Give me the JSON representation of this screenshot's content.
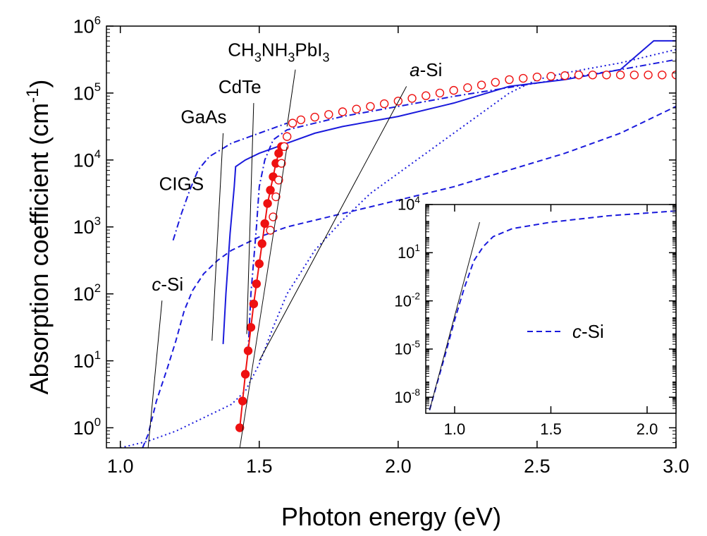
{
  "chart_data": [
    {
      "id": "main",
      "type": "line",
      "xlabel": "Photon energy (eV)",
      "ylabel": "Absorption coefficient (cm",
      "ylabel_sup": "-1",
      "ylabel_close": ")",
      "xlim": [
        0.95,
        3.0
      ],
      "ylim_log10": [
        -0.3,
        6
      ],
      "yscale": "log",
      "x_ticks": [
        {
          "v": 1.0,
          "label": "1.0"
        },
        {
          "v": 1.5,
          "label": "1.5"
        },
        {
          "v": 2.0,
          "label": "2.0"
        },
        {
          "v": 2.5,
          "label": "2.5"
        },
        {
          "v": 3.0,
          "label": "3.0"
        }
      ],
      "y_ticks": [
        {
          "exp": 0,
          "base": "10",
          "sup": "0"
        },
        {
          "exp": 1,
          "base": "10",
          "sup": "1"
        },
        {
          "exp": 2,
          "base": "10",
          "sup": "2"
        },
        {
          "exp": 3,
          "base": "10",
          "sup": "3"
        },
        {
          "exp": 4,
          "base": "10",
          "sup": "4"
        },
        {
          "exp": 5,
          "base": "10",
          "sup": "5"
        },
        {
          "exp": 6,
          "base": "10",
          "sup": "6"
        }
      ],
      "grid": false,
      "series": [
        {
          "name": "c-Si",
          "color": "#1a1adc",
          "style": "dashed",
          "points": [
            [
              1.08,
              -0.3
            ],
            [
              1.1,
              -0.1
            ],
            [
              1.13,
              0.4
            ],
            [
              1.17,
              0.9
            ],
            [
              1.2,
              1.3
            ],
            [
              1.23,
              1.75
            ],
            [
              1.26,
              2.05
            ],
            [
              1.3,
              2.3
            ],
            [
              1.35,
              2.5
            ],
            [
              1.4,
              2.65
            ],
            [
              1.5,
              2.85
            ],
            [
              1.6,
              3.0
            ],
            [
              1.8,
              3.2
            ],
            [
              2.0,
              3.4
            ],
            [
              2.2,
              3.6
            ],
            [
              2.4,
              3.85
            ],
            [
              2.6,
              4.1
            ],
            [
              2.8,
              4.4
            ],
            [
              3.0,
              4.8
            ]
          ]
        },
        {
          "name": "a-Si",
          "color": "#1a1adc",
          "style": "dotted",
          "points": [
            [
              1.0,
              -0.3
            ],
            [
              1.1,
              -0.2
            ],
            [
              1.2,
              -0.05
            ],
            [
              1.3,
              0.15
            ],
            [
              1.4,
              0.35
            ],
            [
              1.45,
              0.55
            ],
            [
              1.5,
              0.95
            ],
            [
              1.55,
              1.5
            ],
            [
              1.6,
              2.0
            ],
            [
              1.7,
              2.65
            ],
            [
              1.8,
              3.1
            ],
            [
              1.9,
              3.5
            ],
            [
              2.0,
              3.8
            ],
            [
              2.1,
              4.1
            ],
            [
              2.2,
              4.4
            ],
            [
              2.3,
              4.7
            ],
            [
              2.4,
              5.0
            ],
            [
              2.5,
              5.2
            ],
            [
              2.6,
              5.3
            ],
            [
              2.8,
              5.45
            ],
            [
              3.0,
              5.65
            ]
          ]
        },
        {
          "name": "GaAs",
          "color": "#1a1adc",
          "style": "solid",
          "points": [
            [
              1.37,
              1.25
            ],
            [
              1.38,
              2.0
            ],
            [
              1.395,
              2.9
            ],
            [
              1.41,
              3.6
            ],
            [
              1.415,
              3.9
            ],
            [
              1.45,
              4.0
            ],
            [
              1.5,
              4.1
            ],
            [
              1.6,
              4.25
            ],
            [
              1.7,
              4.4
            ],
            [
              1.8,
              4.5
            ],
            [
              2.0,
              4.65
            ],
            [
              2.2,
              4.85
            ],
            [
              2.4,
              5.1
            ],
            [
              2.6,
              5.2
            ],
            [
              2.8,
              5.35
            ],
            [
              2.92,
              5.78
            ],
            [
              3.0,
              5.78
            ]
          ]
        },
        {
          "name": "CdTe",
          "color": "#1a1adc",
          "style": "dashdot",
          "points": [
            [
              1.46,
              1.15
            ],
            [
              1.47,
              2.0
            ],
            [
              1.49,
              3.0
            ],
            [
              1.5,
              3.6
            ],
            [
              1.52,
              4.0
            ],
            [
              1.55,
              4.3
            ],
            [
              1.6,
              4.45
            ],
            [
              1.8,
              4.65
            ],
            [
              2.0,
              4.8
            ],
            [
              2.2,
              4.95
            ],
            [
              2.5,
              5.15
            ],
            [
              2.8,
              5.35
            ],
            [
              3.0,
              5.5
            ]
          ]
        },
        {
          "name": "CIGS",
          "color": "#1a1adc",
          "style": "dashdot",
          "points": [
            [
              1.19,
              2.8
            ],
            [
              1.22,
              3.2
            ],
            [
              1.25,
              3.55
            ],
            [
              1.28,
              3.85
            ],
            [
              1.32,
              4.05
            ],
            [
              1.4,
              4.25
            ],
            [
              1.5,
              4.4
            ],
            [
              1.6,
              4.55
            ]
          ]
        },
        {
          "name": "CH3NH3PbI3 (filled)",
          "color": "#ee1111",
          "style": "markers-filled",
          "points": [
            [
              1.43,
              0.0
            ],
            [
              1.44,
              0.4
            ],
            [
              1.45,
              0.8
            ],
            [
              1.46,
              1.15
            ],
            [
              1.47,
              1.5
            ],
            [
              1.48,
              1.85
            ],
            [
              1.49,
              2.15
            ],
            [
              1.5,
              2.45
            ],
            [
              1.51,
              2.75
            ],
            [
              1.52,
              3.05
            ],
            [
              1.53,
              3.35
            ],
            [
              1.54,
              3.55
            ],
            [
              1.55,
              3.75
            ],
            [
              1.56,
              3.95
            ],
            [
              1.57,
              4.1
            ],
            [
              1.58,
              4.2
            ]
          ]
        },
        {
          "name": "CH3NH3PbI3 (open)",
          "color": "#ee1111",
          "style": "markers-open",
          "points": [
            [
              1.54,
              2.95
            ],
            [
              1.55,
              3.15
            ],
            [
              1.56,
              3.45
            ],
            [
              1.57,
              3.7
            ],
            [
              1.58,
              3.95
            ],
            [
              1.59,
              4.2
            ],
            [
              1.6,
              4.35
            ],
            [
              1.62,
              4.55
            ],
            [
              1.65,
              4.6
            ],
            [
              1.7,
              4.64
            ],
            [
              1.75,
              4.68
            ],
            [
              1.8,
              4.72
            ],
            [
              1.85,
              4.76
            ],
            [
              1.9,
              4.8
            ],
            [
              1.95,
              4.84
            ],
            [
              2.0,
              4.88
            ],
            [
              2.05,
              4.92
            ],
            [
              2.1,
              4.96
            ],
            [
              2.15,
              5.0
            ],
            [
              2.2,
              5.04
            ],
            [
              2.25,
              5.08
            ],
            [
              2.3,
              5.12
            ],
            [
              2.35,
              5.16
            ],
            [
              2.4,
              5.2
            ],
            [
              2.45,
              5.22
            ],
            [
              2.5,
              5.24
            ],
            [
              2.55,
              5.25
            ],
            [
              2.6,
              5.26
            ],
            [
              2.65,
              5.27
            ],
            [
              2.7,
              5.27
            ],
            [
              2.75,
              5.27
            ],
            [
              2.8,
              5.27
            ],
            [
              2.85,
              5.27
            ],
            [
              2.9,
              5.27
            ],
            [
              2.95,
              5.27
            ],
            [
              3.0,
              5.27
            ]
          ]
        },
        {
          "name": "fit",
          "color": "#111111",
          "style": "thin",
          "points": [
            [
              1.43,
              -0.3
            ],
            [
              1.6,
              4.2
            ]
          ]
        }
      ],
      "annotations": [
        {
          "text": "CIGS",
          "x": 1.22,
          "y": 3.55,
          "tx": 1.22,
          "ty": 3.55,
          "leader": false
        },
        {
          "text": "GaAs",
          "x": 1.3,
          "y": 4.55,
          "lx1": 1.37,
          "ly1": 4.4,
          "lx2": 1.33,
          "ly2": 1.3,
          "leader": true
        },
        {
          "text": "CdTe",
          "x": 1.43,
          "y": 5.0,
          "lx1": 1.48,
          "ly1": 4.85,
          "lx2": 1.455,
          "ly2": 1.4,
          "leader": true
        },
        {
          "text_main": "CH",
          "sub1": "3",
          "mid": "NH",
          "sub2": "3",
          "tail": "PbI",
          "sub3": "3",
          "x": 1.57,
          "y": 5.55,
          "lx1": 1.63,
          "ly1": 5.35,
          "lx2": 1.6,
          "ly2": 4.5,
          "leader": true,
          "formula": true
        },
        {
          "italic": "a",
          "rest": "-Si",
          "x": 2.1,
          "y": 5.25,
          "lx1": 2.03,
          "ly1": 5.1,
          "lx2": 1.5,
          "ly2": 1.0,
          "leader": true
        },
        {
          "italic": "c",
          "rest": "-Si",
          "x": 1.17,
          "y": 2.05,
          "lx1": 1.15,
          "ly1": 1.9,
          "lx2": 1.1,
          "ly2": -0.3,
          "leader": true
        }
      ]
    },
    {
      "id": "inset",
      "type": "line",
      "xlim": [
        0.85,
        2.15
      ],
      "ylim_log10": [
        -9,
        4
      ],
      "yscale": "log",
      "x_ticks": [
        {
          "v": 1.0,
          "label": "1.0"
        },
        {
          "v": 1.5,
          "label": "1.5"
        },
        {
          "v": 2.0,
          "label": "2.0"
        }
      ],
      "y_ticks": [
        {
          "exp": 4,
          "base": "10",
          "sup": "4"
        },
        {
          "exp": 1,
          "base": "10",
          "sup": "1"
        },
        {
          "exp": -2,
          "base": "10",
          "sup": "-2"
        },
        {
          "exp": -5,
          "base": "10",
          "sup": "-5"
        },
        {
          "exp": -8,
          "base": "10",
          "sup": "-8"
        }
      ],
      "legend": {
        "italic": "c",
        "rest": "-Si",
        "placement": "middle-right"
      },
      "series": [
        {
          "name": "c-Si",
          "color": "#1a1adc",
          "style": "dashed",
          "points": [
            [
              0.87,
              -8.8
            ],
            [
              0.9,
              -7.5
            ],
            [
              0.95,
              -5.4
            ],
            [
              1.0,
              -3.2
            ],
            [
              1.05,
              -1.2
            ],
            [
              1.1,
              0.5
            ],
            [
              1.15,
              1.4
            ],
            [
              1.2,
              2.0
            ],
            [
              1.3,
              2.5
            ],
            [
              1.5,
              2.9
            ],
            [
              1.8,
              3.3
            ],
            [
              2.15,
              3.6
            ]
          ]
        },
        {
          "name": "fit",
          "color": "#111111",
          "style": "thin",
          "points": [
            [
              0.87,
              -8.8
            ],
            [
              1.13,
              2.9
            ]
          ]
        }
      ]
    }
  ]
}
